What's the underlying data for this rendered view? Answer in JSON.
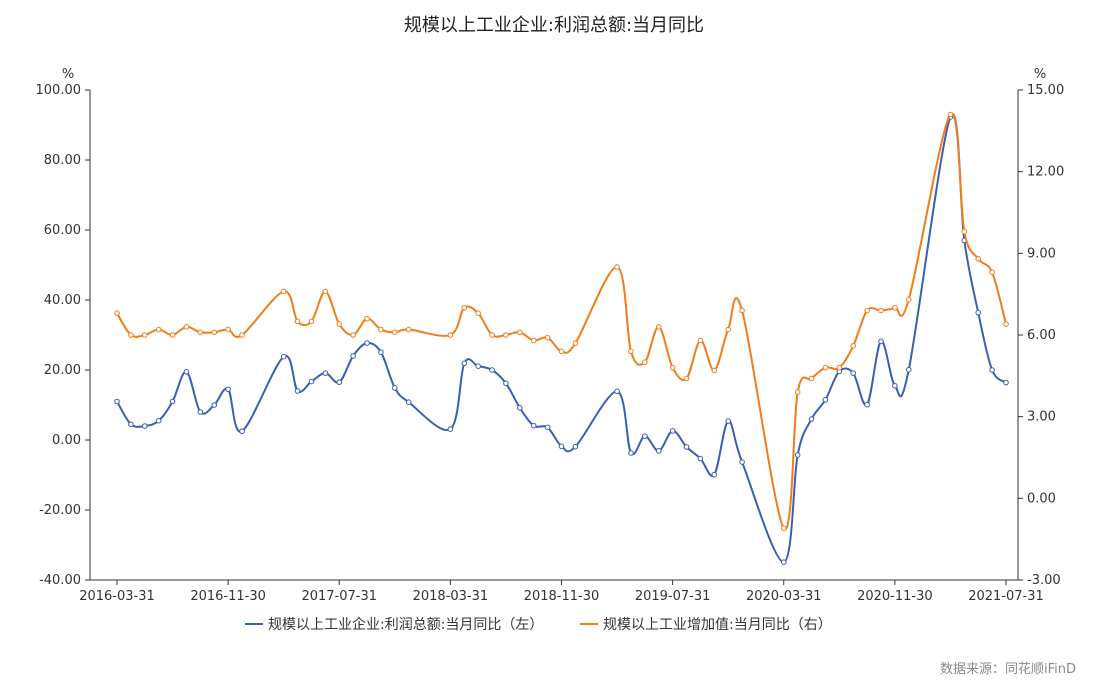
{
  "chart_data": {
    "type": "line",
    "title": "规模以上工业企业:利润总额:当月同比",
    "left_axis": {
      "unit": "%",
      "ylim": [
        -40,
        100
      ],
      "ticks": [
        "100.00",
        "80.00",
        "60.00",
        "40.00",
        "20.00",
        "0.00",
        "-20.00",
        "-40.00"
      ]
    },
    "right_axis": {
      "unit": "%",
      "ylim": [
        -3,
        15
      ],
      "ticks": [
        "15.00",
        "12.00",
        "9.00",
        "6.00",
        "3.00",
        "0.00",
        "-3.00"
      ]
    },
    "x_ticks": [
      "2016-03-31",
      "2016-11-30",
      "2017-07-31",
      "2018-03-31",
      "2018-11-30",
      "2019-07-31",
      "2020-03-31",
      "2020-11-30",
      "2021-07-31"
    ],
    "x": [
      "2016-03",
      "2016-04",
      "2016-05",
      "2016-06",
      "2016-07",
      "2016-08",
      "2016-09",
      "2016-10",
      "2016-11",
      "2016-12",
      "2017-01",
      "2017-02",
      "2017-03",
      "2017-04",
      "2017-05",
      "2017-06",
      "2017-07",
      "2017-08",
      "2017-09",
      "2017-10",
      "2017-11",
      "2017-12",
      "2018-01",
      "2018-02",
      "2018-03",
      "2018-04",
      "2018-05",
      "2018-06",
      "2018-07",
      "2018-08",
      "2018-09",
      "2018-10",
      "2018-11",
      "2018-12",
      "2019-01",
      "2019-02",
      "2019-03",
      "2019-04",
      "2019-05",
      "2019-06",
      "2019-07",
      "2019-08",
      "2019-09",
      "2019-10",
      "2019-11",
      "2019-12",
      "2020-01",
      "2020-02",
      "2020-03",
      "2020-04",
      "2020-05",
      "2020-06",
      "2020-07",
      "2020-08",
      "2020-09",
      "2020-10",
      "2020-11",
      "2020-12",
      "2021-01",
      "2021-02",
      "2021-03",
      "2021-04",
      "2021-05",
      "2021-06",
      "2021-07"
    ],
    "series": [
      {
        "name": "规模以上工业企业:利润总额:当月同比（左）",
        "axis": "left",
        "color": "#3a5fb4",
        "values": [
          11,
          4.5,
          4,
          5.5,
          11,
          19.5,
          8,
          10,
          14.5,
          2.5,
          null,
          null,
          23.8,
          14,
          16.7,
          19.1,
          16.5,
          24,
          27.7,
          25.1,
          14.9,
          10.8,
          null,
          null,
          3.1,
          21.9,
          21.1,
          20,
          16.2,
          9.2,
          4.1,
          3.6,
          -1.8,
          -1.9,
          null,
          null,
          13.9,
          -3.7,
          1.1,
          -3.1,
          2.6,
          -2,
          -5.3,
          -9.9,
          5.4,
          -6.3,
          null,
          null,
          -34.9,
          -4.3,
          6,
          11.5,
          19.6,
          19.1,
          10.1,
          28.2,
          15.5,
          20.1,
          null,
          null,
          92.3,
          57,
          36.4,
          20,
          16.4
        ]
      },
      {
        "name": "规模以上工业增加值:当月同比（右）",
        "axis": "right",
        "color": "#f07d1a",
        "values": [
          6.8,
          6,
          6,
          6.2,
          6,
          6.3,
          6.1,
          6.1,
          6.2,
          6,
          null,
          null,
          7.6,
          6.5,
          6.5,
          7.6,
          6.4,
          6,
          6.6,
          6.2,
          6.1,
          6.2,
          null,
          null,
          6,
          7,
          6.8,
          6,
          6,
          6.1,
          5.8,
          5.9,
          5.4,
          5.7,
          null,
          null,
          8.5,
          5.4,
          5,
          6.3,
          4.8,
          4.4,
          5.8,
          4.7,
          6.2,
          6.9,
          null,
          null,
          -1.1,
          3.9,
          4.4,
          4.8,
          4.8,
          5.6,
          6.9,
          6.9,
          7,
          7.3,
          null,
          null,
          14.1,
          9.8,
          8.8,
          8.3,
          6.4
        ]
      }
    ],
    "legend": "bottom",
    "source": "数据来源：同花顺iFinD"
  }
}
